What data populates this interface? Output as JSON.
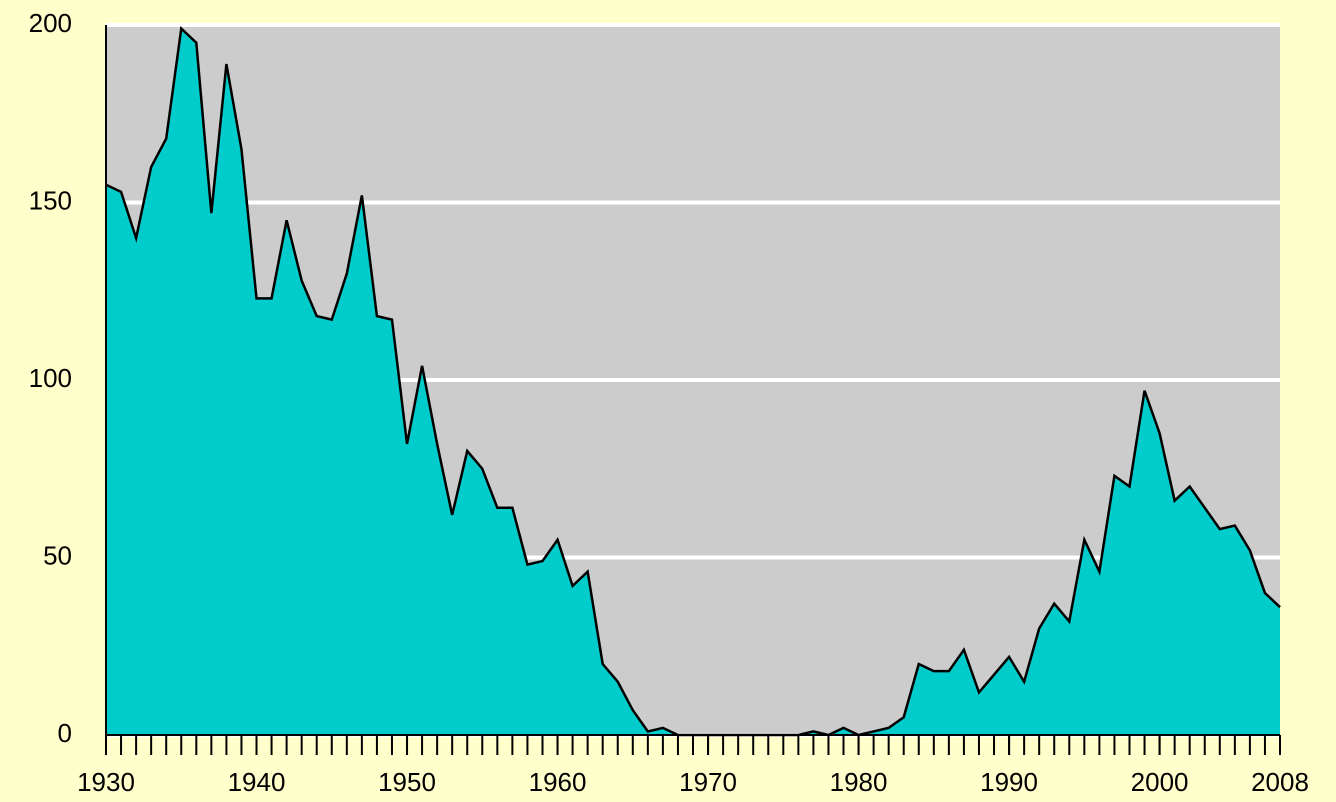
{
  "chart_data": {
    "type": "area",
    "x": [
      1930,
      1931,
      1932,
      1933,
      1934,
      1935,
      1936,
      1937,
      1938,
      1939,
      1940,
      1941,
      1942,
      1943,
      1944,
      1945,
      1946,
      1947,
      1948,
      1949,
      1950,
      1951,
      1952,
      1953,
      1954,
      1955,
      1956,
      1957,
      1958,
      1959,
      1960,
      1961,
      1962,
      1963,
      1964,
      1965,
      1966,
      1967,
      1968,
      1969,
      1970,
      1971,
      1972,
      1973,
      1974,
      1975,
      1976,
      1977,
      1978,
      1979,
      1980,
      1981,
      1982,
      1983,
      1984,
      1985,
      1986,
      1987,
      1988,
      1989,
      1990,
      1991,
      1992,
      1993,
      1994,
      1995,
      1996,
      1997,
      1998,
      1999,
      2000,
      2001,
      2002,
      2003,
      2004,
      2005,
      2006,
      2007,
      2008
    ],
    "values": [
      155,
      153,
      140,
      160,
      168,
      199,
      195,
      147,
      189,
      165,
      123,
      123,
      145,
      128,
      118,
      117,
      130,
      152,
      118,
      117,
      82,
      104,
      82,
      62,
      80,
      75,
      64,
      64,
      48,
      49,
      55,
      42,
      46,
      20,
      15,
      7,
      1,
      2,
      0,
      0,
      0,
      0,
      0,
      0,
      0,
      0,
      0,
      1,
      0,
      2,
      0,
      1,
      2,
      5,
      20,
      18,
      18,
      24,
      12,
      17,
      22,
      15,
      30,
      37,
      32,
      55,
      46,
      73,
      70,
      97,
      85,
      66,
      70,
      64,
      58,
      59,
      52,
      40,
      36
    ],
    "color": "#00cccc",
    "xlim": [
      1930,
      2008
    ],
    "xticks": [
      1930,
      1940,
      1950,
      1960,
      1970,
      1980,
      1990,
      2000,
      2008
    ],
    "ylim": [
      0,
      200
    ],
    "yticks": [
      0,
      50,
      100,
      150,
      200
    ],
    "grid": true
  }
}
